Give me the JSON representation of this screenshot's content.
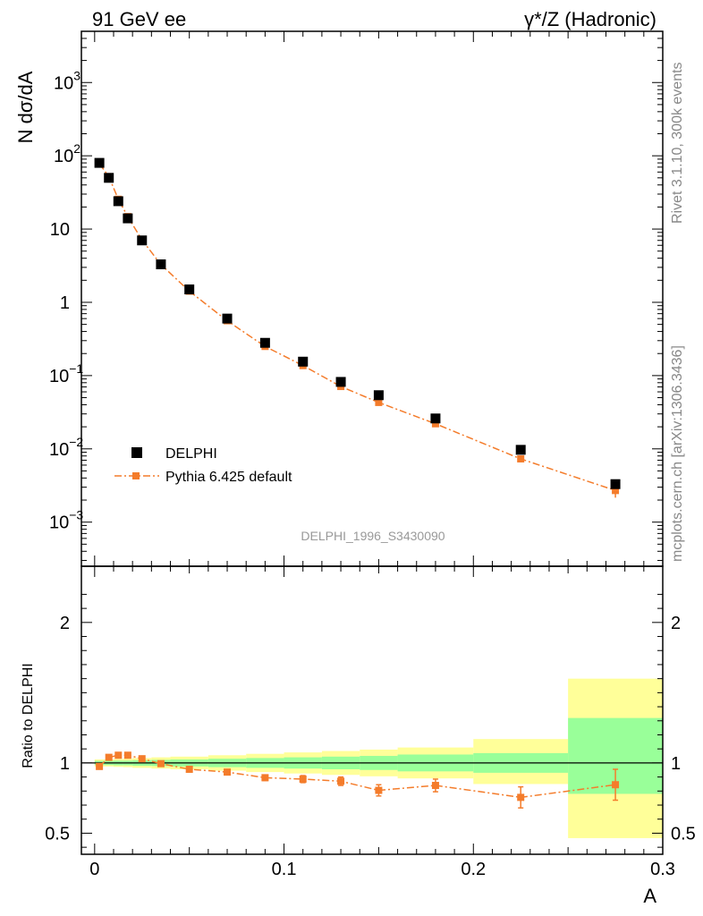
{
  "header": {
    "left": "91 GeV ee",
    "right": "γ*/Z (Hadronic)"
  },
  "side_text": {
    "rivet": "Rivet 3.1.10,  300k events",
    "mcplots": "mcplots.cern.ch [arXiv:1306.3436]"
  },
  "analysis_label": "DELPHI_1996_S3430090",
  "legend": {
    "data": "DELPHI",
    "mc": "Pythia 6.425 default"
  },
  "colors": {
    "data": "#000000",
    "mc": "#f47c2b",
    "band_inner": "#99ff99",
    "band_outer": "#ffff99"
  },
  "chart_data": [
    {
      "type": "scatter",
      "panel": "main",
      "ylabel": "N dσ/dA",
      "y_scale": "log",
      "ylim": [
        0.00025,
        5000
      ],
      "xlim": [
        -0.007,
        0.3
      ],
      "yticks": [
        {
          "label": "10",
          "sup": "3"
        },
        {
          "label": "10",
          "sup": "2"
        },
        {
          "label": "10",
          "sup": ""
        },
        {
          "label": "1",
          "sup": ""
        },
        {
          "label": "10",
          "sup": "−1"
        },
        {
          "label": "10",
          "sup": "−2"
        },
        {
          "label": "10",
          "sup": "−3"
        }
      ],
      "series": [
        {
          "name": "DELPHI",
          "x": [
            0.0025,
            0.0075,
            0.0125,
            0.0175,
            0.025,
            0.035,
            0.05,
            0.07,
            0.09,
            0.11,
            0.13,
            0.15,
            0.18,
            0.225,
            0.275
          ],
          "y": [
            80,
            50,
            24,
            14,
            7.0,
            3.3,
            1.5,
            0.6,
            0.28,
            0.155,
            0.082,
            0.054,
            0.026,
            0.0097,
            0.0033
          ]
        },
        {
          "name": "Pythia 6.425 default",
          "x": [
            0.0025,
            0.0075,
            0.0125,
            0.0175,
            0.025,
            0.035,
            0.05,
            0.07,
            0.09,
            0.11,
            0.13,
            0.15,
            0.18,
            0.225,
            0.275
          ],
          "y": [
            78,
            52,
            25.5,
            14.8,
            7.1,
            3.28,
            1.42,
            0.56,
            0.25,
            0.137,
            0.071,
            0.043,
            0.022,
            0.0073,
            0.0027
          ]
        }
      ]
    },
    {
      "type": "scatter",
      "panel": "ratio",
      "xlabel": "A",
      "ylabel": "Ratio to DELPHI",
      "ylim": [
        0.35,
        2.4
      ],
      "xlim": [
        -0.007,
        0.3
      ],
      "xticks": [
        "0",
        "0.1",
        "0.2",
        "0.3"
      ],
      "yticks": [
        "0.5",
        "1",
        "2"
      ],
      "x_edges": [
        0.0,
        0.005,
        0.01,
        0.015,
        0.02,
        0.03,
        0.04,
        0.06,
        0.08,
        0.1,
        0.12,
        0.14,
        0.16,
        0.2,
        0.25,
        0.3
      ],
      "band_inner": [
        [
          0.985,
          1.015
        ],
        [
          0.985,
          1.015
        ],
        [
          0.983,
          1.017
        ],
        [
          0.983,
          1.017
        ],
        [
          0.98,
          1.02
        ],
        [
          0.978,
          1.022
        ],
        [
          0.975,
          1.025
        ],
        [
          0.97,
          1.03
        ],
        [
          0.965,
          1.035
        ],
        [
          0.96,
          1.04
        ],
        [
          0.955,
          1.045
        ],
        [
          0.95,
          1.05
        ],
        [
          0.94,
          1.06
        ],
        [
          0.93,
          1.07
        ],
        [
          0.78,
          1.32
        ]
      ],
      "band_outer": [
        [
          0.975,
          1.025
        ],
        [
          0.975,
          1.025
        ],
        [
          0.972,
          1.028
        ],
        [
          0.97,
          1.03
        ],
        [
          0.965,
          1.035
        ],
        [
          0.96,
          1.04
        ],
        [
          0.955,
          1.045
        ],
        [
          0.945,
          1.055
        ],
        [
          0.935,
          1.065
        ],
        [
          0.925,
          1.075
        ],
        [
          0.915,
          1.085
        ],
        [
          0.905,
          1.095
        ],
        [
          0.89,
          1.11
        ],
        [
          0.85,
          1.17
        ],
        [
          0.465,
          1.6
        ]
      ],
      "series": [
        {
          "name": "Pythia 6.425 default",
          "x": [
            0.0025,
            0.0075,
            0.0125,
            0.0175,
            0.025,
            0.035,
            0.05,
            0.07,
            0.09,
            0.11,
            0.13,
            0.15,
            0.18,
            0.225,
            0.275
          ],
          "y": [
            0.975,
            1.04,
            1.055,
            1.055,
            1.03,
            0.995,
            0.955,
            0.935,
            0.895,
            0.885,
            0.87,
            0.805,
            0.84,
            0.755,
            0.845
          ],
          "err": [
            0.01,
            0.012,
            0.012,
            0.012,
            0.01,
            0.01,
            0.012,
            0.015,
            0.02,
            0.025,
            0.03,
            0.04,
            0.045,
            0.075,
            0.11
          ]
        }
      ]
    }
  ]
}
